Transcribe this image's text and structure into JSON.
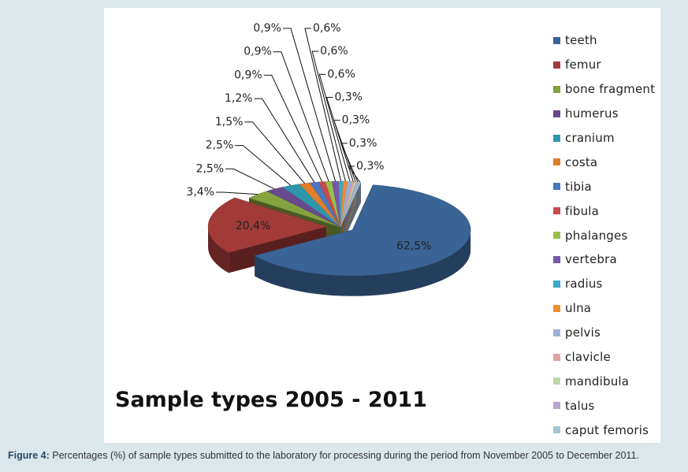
{
  "chart_data": {
    "type": "pie",
    "title": "Sample types 2005 - 2011",
    "legend_position": "right",
    "three_d": true,
    "categories": [
      "teeth",
      "femur",
      "bone fragment",
      "humerus",
      "cranium",
      "costa",
      "tibia",
      "fibula",
      "phalanges",
      "vertebra",
      "radius",
      "ulna",
      "pelvis",
      "clavicle",
      "mandibula",
      "talus",
      "caput femoris"
    ],
    "values": [
      62.5,
      20.4,
      3.4,
      2.5,
      2.5,
      1.5,
      1.2,
      0.9,
      0.9,
      0.9,
      0.6,
      0.6,
      0.6,
      0.3,
      0.3,
      0.3,
      0.3
    ],
    "data_labels": [
      "62,5%",
      "20,4%",
      "3,4%",
      "2,5%",
      "2,5%",
      "1,5%",
      "1,2%",
      "0,9%",
      "0,9%",
      "0,9%",
      "0,6%",
      "0,6%",
      "0,6%",
      "0,3%",
      "0,3%",
      "0,3%",
      "0,3%"
    ],
    "colors": [
      "#3a6496",
      "#a23b38",
      "#84a23e",
      "#6a4a8e",
      "#2f96ae",
      "#e07f2a",
      "#4a78c0",
      "#c84a4c",
      "#98be4a",
      "#7a56a8",
      "#3aaac8",
      "#f08c32",
      "#9cb0d8",
      "#dca4a4",
      "#bcd8a8",
      "#b8a8cc",
      "#a0c8d8"
    ]
  },
  "caption": {
    "label": "Figure 4:",
    "text": " Percentages (%) of sample types submitted to the laboratory for processing during the period from November 2005 to December 2011."
  }
}
